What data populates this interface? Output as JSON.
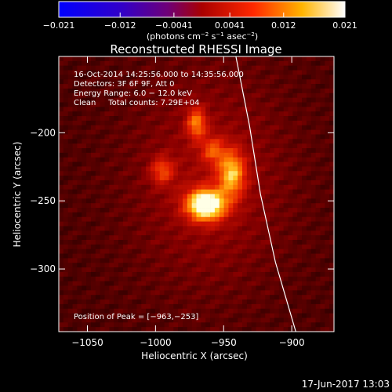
{
  "chart_data": {
    "type": "heatmap",
    "title": "Reconstructed RHESSI Image",
    "xlabel": "Heliocentric X (arcsec)",
    "ylabel": "Heliocentric Y (arcsec)",
    "xlim": [
      -1071,
      -869
    ],
    "ylim": [
      -346,
      -144
    ],
    "xticks": [
      -1050,
      -1000,
      -950,
      -900
    ],
    "yticks": [
      -200,
      -250,
      -300
    ],
    "xtick_labels": [
      "−1050",
      "−1000",
      "−950",
      "−900"
    ],
    "ytick_labels": [
      "−200",
      "−250",
      "−300"
    ],
    "colorbar": {
      "ticks": [
        -0.021,
        -0.012,
        -0.0041,
        0.0041,
        0.012,
        0.021
      ],
      "tick_labels": [
        "−0.021",
        "−0.012",
        "−0.0041",
        "0.0041",
        "0.012",
        "0.021"
      ],
      "label_main": "(photons cm",
      "label_exp1": "−2",
      "label_mid": " s",
      "label_exp2": "−1",
      "label_mid2": " asec",
      "label_exp3": "−2",
      "label_end": ")"
    },
    "annotations": {
      "time": "16-Oct-2014 14:25:56.000 to 14:35:56.000",
      "detectors": "Detectors: 3F 6F 9F, Att 0",
      "energy": "Energy Range: 6.0 − 12.0 keV",
      "clean": "Clean     Total counts: 7.29E+04",
      "peak": "Position of Peak = [−963,−253]"
    },
    "sources": [
      {
        "x": -963,
        "y": -253,
        "sx": 10,
        "sy": 8,
        "amp": 1.0
      },
      {
        "x": -944,
        "y": -230,
        "sx": 7,
        "sy": 12,
        "amp": 0.62
      },
      {
        "x": -970,
        "y": -193,
        "sx": 5,
        "sy": 8,
        "amp": 0.5
      },
      {
        "x": -995,
        "y": -228,
        "sx": 6,
        "sy": 7,
        "amp": 0.38
      },
      {
        "x": -958,
        "y": -213,
        "sx": 6,
        "sy": 7,
        "amp": 0.35
      }
    ],
    "background_level": 0.16,
    "limb": [
      [
        -941,
        -144
      ],
      [
        -931,
        -195
      ],
      [
        -923,
        -245
      ],
      [
        -912,
        -295
      ],
      [
        -897,
        -346
      ]
    ]
  },
  "footer": {
    "date": "17-Jun-2017 13:03"
  }
}
